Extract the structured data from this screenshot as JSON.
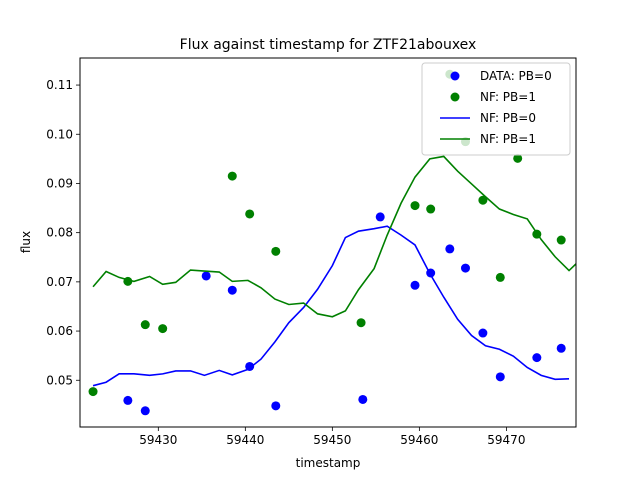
{
  "chart_data": {
    "type": "scatter+line",
    "title": "Flux against timestamp for ZTF21abouxex",
    "xlabel": "timestamp",
    "ylabel": "flux",
    "xlim": [
      59421,
      59478
    ],
    "ylim": [
      0.0405,
      0.1155
    ],
    "xticks": [
      59420,
      59430,
      59440,
      59450,
      59460,
      59470
    ],
    "xtick_labels": [
      "59420",
      "59430",
      "59440",
      "59450",
      "59460",
      "59470"
    ],
    "yticks": [
      0.05,
      0.06,
      0.07,
      0.08,
      0.09,
      0.1,
      0.11
    ],
    "ytick_labels": [
      "0.05",
      "0.06",
      "0.07",
      "0.08",
      "0.09",
      "0.10",
      "0.11"
    ],
    "grid": false,
    "legend_position": "top-right",
    "series": [
      {
        "name": "DATA: PB=0",
        "kind": "scatter",
        "color": "#0000ff",
        "points": [
          [
            59426.5,
            0.0459
          ],
          [
            59428.5,
            0.0438
          ],
          [
            59435.5,
            0.0712
          ],
          [
            59438.5,
            0.0683
          ],
          [
            59440.5,
            0.0528
          ],
          [
            59443.5,
            0.0448
          ],
          [
            59453.5,
            0.0461
          ],
          [
            59455.5,
            0.0832
          ],
          [
            59459.5,
            0.0693
          ],
          [
            59461.3,
            0.0718
          ],
          [
            59463.5,
            0.0767
          ],
          [
            59465.3,
            0.0728
          ],
          [
            59467.3,
            0.0596
          ],
          [
            59469.3,
            0.0507
          ],
          [
            59473.5,
            0.0546
          ],
          [
            59476.3,
            0.0565
          ]
        ]
      },
      {
        "name": "NF: PB=1",
        "kind": "scatter",
        "color": "#008000",
        "points": [
          [
            59422.5,
            0.0477
          ],
          [
            59426.5,
            0.0701
          ],
          [
            59428.5,
            0.0613
          ],
          [
            59430.5,
            0.0605
          ],
          [
            59438.5,
            0.0915
          ],
          [
            59440.5,
            0.0838
          ],
          [
            59443.5,
            0.0762
          ],
          [
            59453.3,
            0.0617
          ],
          [
            59459.5,
            0.0855
          ],
          [
            59461.3,
            0.0848
          ],
          [
            59463.5,
            0.1122
          ],
          [
            59465.3,
            0.0985
          ],
          [
            59467.3,
            0.0866
          ],
          [
            59469.3,
            0.0709
          ],
          [
            59471.3,
            0.0951
          ],
          [
            59473.5,
            0.0797
          ],
          [
            59476.3,
            0.0785
          ]
        ]
      },
      {
        "name": "NF: PB=0",
        "kind": "line",
        "color": "#0000ff",
        "points": [
          [
            59422.5,
            0.0489
          ],
          [
            59424.0,
            0.0496
          ],
          [
            59425.5,
            0.0513
          ],
          [
            59427.2,
            0.0513
          ],
          [
            59429.0,
            0.051
          ],
          [
            59430.5,
            0.0513
          ],
          [
            59432.0,
            0.0519
          ],
          [
            59433.7,
            0.0519
          ],
          [
            59435.3,
            0.051
          ],
          [
            59437.0,
            0.052
          ],
          [
            59438.5,
            0.0511
          ],
          [
            59440.3,
            0.0522
          ],
          [
            59441.8,
            0.0543
          ],
          [
            59443.4,
            0.0578
          ],
          [
            59445.0,
            0.0617
          ],
          [
            59446.7,
            0.0648
          ],
          [
            59448.3,
            0.0685
          ],
          [
            59450.0,
            0.0733
          ],
          [
            59451.5,
            0.079
          ],
          [
            59453.0,
            0.0803
          ],
          [
            59454.8,
            0.0808
          ],
          [
            59456.3,
            0.0813
          ],
          [
            59457.9,
            0.0795
          ],
          [
            59459.5,
            0.0775
          ],
          [
            59461.2,
            0.0717
          ],
          [
            59462.8,
            0.0669
          ],
          [
            59464.4,
            0.0624
          ],
          [
            59466.0,
            0.0591
          ],
          [
            59467.6,
            0.057
          ],
          [
            59469.2,
            0.0563
          ],
          [
            59470.8,
            0.0549
          ],
          [
            59472.4,
            0.0526
          ],
          [
            59474.0,
            0.051
          ],
          [
            59475.6,
            0.0502
          ],
          [
            59477.2,
            0.0503
          ]
        ]
      },
      {
        "name": "NF: PB=1",
        "kind": "line",
        "color": "#008000",
        "points": [
          [
            59422.5,
            0.069
          ],
          [
            59424.0,
            0.0721
          ],
          [
            59425.5,
            0.0709
          ],
          [
            59427.2,
            0.0701
          ],
          [
            59429.0,
            0.0711
          ],
          [
            59430.5,
            0.0695
          ],
          [
            59432.0,
            0.0699
          ],
          [
            59433.7,
            0.0724
          ],
          [
            59435.3,
            0.0722
          ],
          [
            59437.0,
            0.072
          ],
          [
            59438.5,
            0.0701
          ],
          [
            59440.3,
            0.0703
          ],
          [
            59441.8,
            0.0688
          ],
          [
            59443.4,
            0.0665
          ],
          [
            59445.0,
            0.0654
          ],
          [
            59446.7,
            0.0657
          ],
          [
            59448.3,
            0.0635
          ],
          [
            59450.0,
            0.0629
          ],
          [
            59451.5,
            0.0641
          ],
          [
            59453.0,
            0.0684
          ],
          [
            59454.8,
            0.0727
          ],
          [
            59456.3,
            0.0795
          ],
          [
            59457.9,
            0.086
          ],
          [
            59459.5,
            0.0913
          ],
          [
            59461.2,
            0.095
          ],
          [
            59462.8,
            0.0955
          ],
          [
            59464.4,
            0.0925
          ],
          [
            59466.0,
            0.0899
          ],
          [
            59467.6,
            0.0873
          ],
          [
            59469.2,
            0.0848
          ],
          [
            59470.8,
            0.0837
          ],
          [
            59472.4,
            0.0828
          ],
          [
            59474.0,
            0.0786
          ],
          [
            59475.6,
            0.0751
          ],
          [
            59477.2,
            0.0723
          ],
          [
            59478.8,
            0.075
          ]
        ]
      }
    ],
    "legend": [
      {
        "label": "DATA: PB=0",
        "marker": "dot",
        "color": "#0000ff"
      },
      {
        "label": "NF: PB=1",
        "marker": "dot",
        "color": "#008000"
      },
      {
        "label": "NF: PB=0",
        "marker": "line",
        "color": "#0000ff"
      },
      {
        "label": "NF: PB=1",
        "marker": "line",
        "color": "#008000"
      }
    ]
  }
}
